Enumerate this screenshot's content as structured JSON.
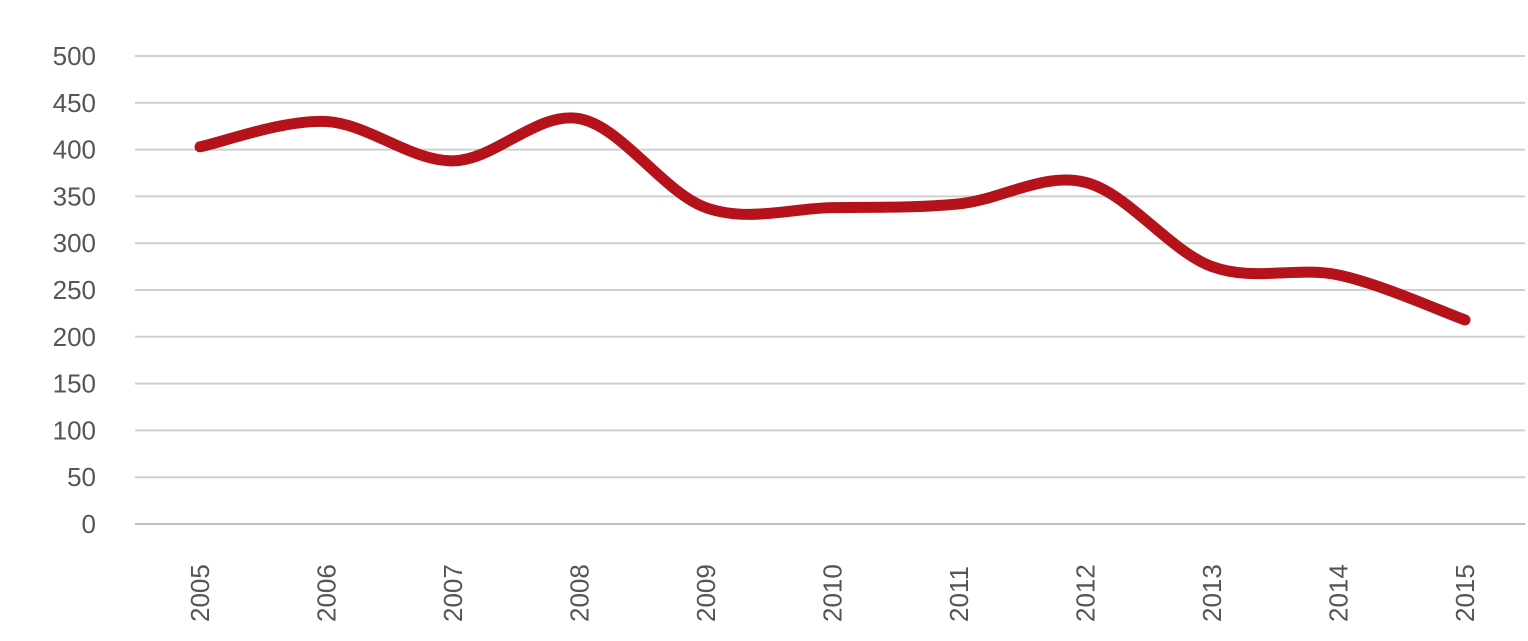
{
  "chart_data": {
    "type": "line",
    "title": "",
    "xlabel": "",
    "ylabel": "",
    "x": [
      "2005",
      "2006",
      "2007",
      "2008",
      "2009",
      "2010",
      "2011",
      "2012",
      "2013",
      "2014",
      "2015"
    ],
    "series": [
      {
        "values": [
          403,
          430,
          388,
          433,
          338,
          338,
          342,
          365,
          275,
          266,
          218
        ],
        "color": "#b5121b"
      }
    ],
    "yticks": [
      "0",
      "50",
      "100",
      "150",
      "200",
      "250",
      "300",
      "350",
      "400",
      "450",
      "500"
    ],
    "ylim": [
      0,
      500
    ],
    "grid": true,
    "legend": "none",
    "smooth": true
  }
}
